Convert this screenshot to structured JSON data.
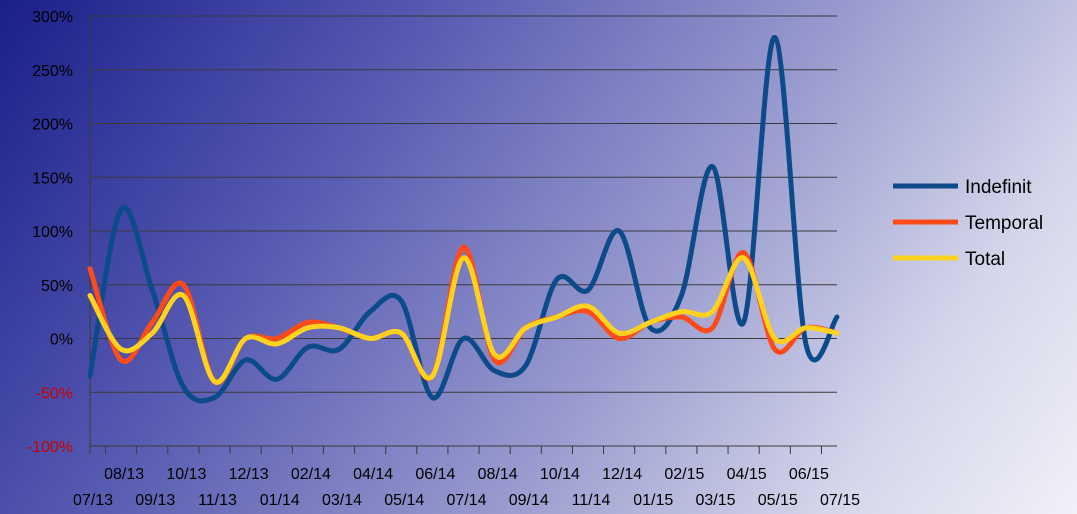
{
  "chart_data": {
    "type": "line",
    "smooth": true,
    "ylim": [
      -100,
      300
    ],
    "y_ticks": [
      300,
      250,
      200,
      150,
      100,
      50,
      0,
      -50,
      -100
    ],
    "y_tick_labels": [
      "300%",
      "250%",
      "200%",
      "150%",
      "100%",
      "50%",
      "0%",
      "-50%",
      "-100%"
    ],
    "y_tick_colors": {
      "positive": "#000000",
      "negative": "#cc0000"
    },
    "grid": true,
    "legend_position": "right",
    "categories": [
      "07/13",
      "08/13",
      "09/13",
      "10/13",
      "11/13",
      "12/13",
      "01/14",
      "02/14",
      "03/14",
      "04/14",
      "05/14",
      "06/14",
      "07/14",
      "08/14",
      "09/14",
      "10/14",
      "11/14",
      "12/14",
      "01/15",
      "02/15",
      "03/15",
      "04/15",
      "05/15",
      "06/15",
      "07/15"
    ],
    "series": [
      {
        "name": "Indefinit",
        "color": "#0d4a8a",
        "values": [
          -35,
          120,
          45,
          -45,
          -55,
          -20,
          -38,
          -8,
          -10,
          25,
          35,
          -55,
          0,
          -30,
          -25,
          55,
          45,
          100,
          10,
          40,
          160,
          15,
          280,
          -5,
          20
        ]
      },
      {
        "name": "Temporal",
        "color": "#ff4a1a",
        "values": [
          65,
          -20,
          15,
          50,
          -40,
          0,
          0,
          15,
          10,
          0,
          5,
          -35,
          85,
          -20,
          10,
          20,
          25,
          0,
          15,
          20,
          10,
          80,
          -10,
          10,
          5
        ]
      },
      {
        "name": "Total",
        "color": "#ffd21f",
        "values": [
          40,
          -10,
          5,
          40,
          -40,
          0,
          -5,
          10,
          10,
          0,
          5,
          -35,
          75,
          -15,
          10,
          20,
          30,
          5,
          15,
          25,
          25,
          75,
          0,
          10,
          5
        ]
      }
    ]
  }
}
